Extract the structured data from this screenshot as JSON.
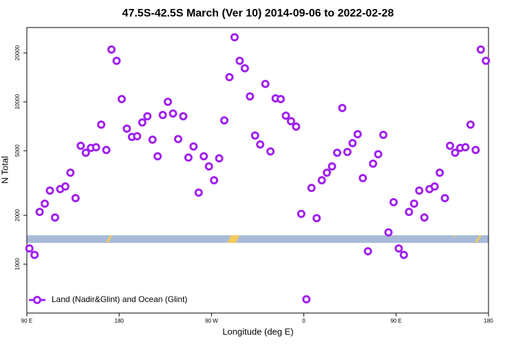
{
  "chart_data": {
    "type": "scatter",
    "title": "47.5S-42.5S March (Ver 10)   2014-09-06 to 2022-02-28",
    "xlabel": "Longitude (deg E)",
    "ylabel": "N Total",
    "x": [
      92.5,
      97.5,
      102.5,
      107.5,
      112.5,
      117.5,
      122.5,
      127.5,
      132.5,
      137.5,
      142.5,
      147.5,
      152.5,
      157.5,
      162.5,
      167.5,
      172.5,
      177.5,
      182.5,
      187.5,
      192.5,
      197.5,
      202.5,
      207.5,
      212.5,
      217.5,
      222.5,
      227.5,
      232.5,
      237.5,
      242.5,
      247.5,
      252.5,
      257.5,
      262.5,
      267.5,
      272.5,
      277.5,
      282.5,
      287.5,
      292.5,
      297.5,
      302.5,
      307.5,
      312.5,
      317.5,
      322.5,
      327.5,
      332.5,
      337.5,
      342.5,
      347.5,
      352.5,
      357.5,
      362.5,
      367.5,
      372.5,
      377.5,
      382.5,
      387.5,
      392.5,
      397.5,
      402.5,
      407.5,
      412.5,
      417.5,
      422.5,
      427.5,
      432.5,
      437.5,
      442.5,
      447.5,
      452.5,
      457.5,
      462.5,
      467.5,
      472.5,
      477.5,
      482.5,
      487.5,
      492.5,
      497.5,
      502.5,
      507.5,
      512.5,
      517.5,
      522.5,
      527.5,
      532.5,
      537.5
    ],
    "series": [
      {
        "name": "Land (Nadir&Glint) and Ocean (Glint)",
        "color": "#a020f0",
        "values": [
          1250,
          1140,
          2100,
          2360,
          2840,
          1940,
          2900,
          3010,
          3660,
          2550,
          5360,
          4860,
          5200,
          5250,
          7240,
          5050,
          21000,
          17900,
          10400,
          6840,
          6080,
          6140,
          7460,
          8150,
          5850,
          4620,
          8300,
          10000,
          8470,
          5900,
          8150,
          4540,
          5310,
          2760,
          4620,
          4000,
          3290,
          4490,
          7690,
          14200,
          25000,
          17900,
          16100,
          10800,
          6200,
          5460,
          12900,
          4950,
          10500,
          10400,
          8220,
          7600,
          7040,
          2040,
          608,
          2950,
          1920,
          3290,
          3660,
          4000,
          4860,
          9160,
          4910,
          5570,
          6320,
          3390,
          1200,
          4160,
          4760,
          6260,
          1570,
          2410,
          1250,
          1140,
          2100,
          2360,
          2840,
          1940,
          2900,
          3010,
          3660,
          2550,
          5360,
          4860,
          5200,
          5250,
          7240,
          5050,
          21000,
          17900
        ]
      }
    ],
    "xlim": [
      90,
      540
    ],
    "xticks": [
      {
        "value": 90,
        "label": "90 E"
      },
      180,
      {
        "value": 270,
        "label": "90 W"
      },
      {
        "value": 360,
        "label": "0"
      },
      {
        "value": 450,
        "label": "90 E"
      },
      {
        "value": 540,
        "label": "180"
      }
    ],
    "ylim": [
      500,
      28700
    ],
    "yticks": [
      1000,
      2000,
      5000,
      10000,
      20000
    ],
    "log_y": true,
    "legend": "bottomleft"
  }
}
